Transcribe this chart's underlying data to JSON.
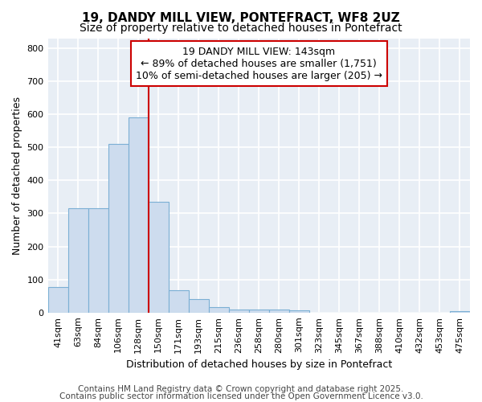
{
  "title_line1": "19, DANDY MILL VIEW, PONTEFRACT, WF8 2UZ",
  "title_line2": "Size of property relative to detached houses in Pontefract",
  "xlabel": "Distribution of detached houses by size in Pontefract",
  "ylabel": "Number of detached properties",
  "categories": [
    "41sqm",
    "63sqm",
    "84sqm",
    "106sqm",
    "128sqm",
    "150sqm",
    "171sqm",
    "193sqm",
    "215sqm",
    "236sqm",
    "258sqm",
    "280sqm",
    "301sqm",
    "323sqm",
    "345sqm",
    "367sqm",
    "388sqm",
    "410sqm",
    "432sqm",
    "453sqm",
    "475sqm"
  ],
  "values": [
    78,
    315,
    315,
    510,
    590,
    335,
    68,
    40,
    17,
    10,
    10,
    10,
    7,
    0,
    0,
    0,
    0,
    0,
    0,
    0,
    5
  ],
  "bar_color": "#cddcee",
  "bar_edge_color": "#7bafd4",
  "bar_width": 1.0,
  "vline_x": 5.0,
  "vline_color": "#cc0000",
  "annotation_line1": "19 DANDY MILL VIEW: 143sqm",
  "annotation_line2": "← 89% of detached houses are smaller (1,751)",
  "annotation_line3": "10% of semi-detached houses are larger (205) →",
  "annotation_box_color": "#ffffff",
  "annotation_box_edge": "#cc0000",
  "ylim": [
    0,
    830
  ],
  "yticks": [
    0,
    100,
    200,
    300,
    400,
    500,
    600,
    700,
    800
  ],
  "footer_line1": "Contains HM Land Registry data © Crown copyright and database right 2025.",
  "footer_line2": "Contains public sector information licensed under the Open Government Licence v3.0.",
  "bg_color": "#ffffff",
  "plot_bg_color": "#e8eef5",
  "grid_color": "#ffffff",
  "title_fontsize": 11,
  "subtitle_fontsize": 10,
  "axis_label_fontsize": 9,
  "tick_fontsize": 8,
  "annotation_fontsize": 9,
  "footer_fontsize": 7.5
}
